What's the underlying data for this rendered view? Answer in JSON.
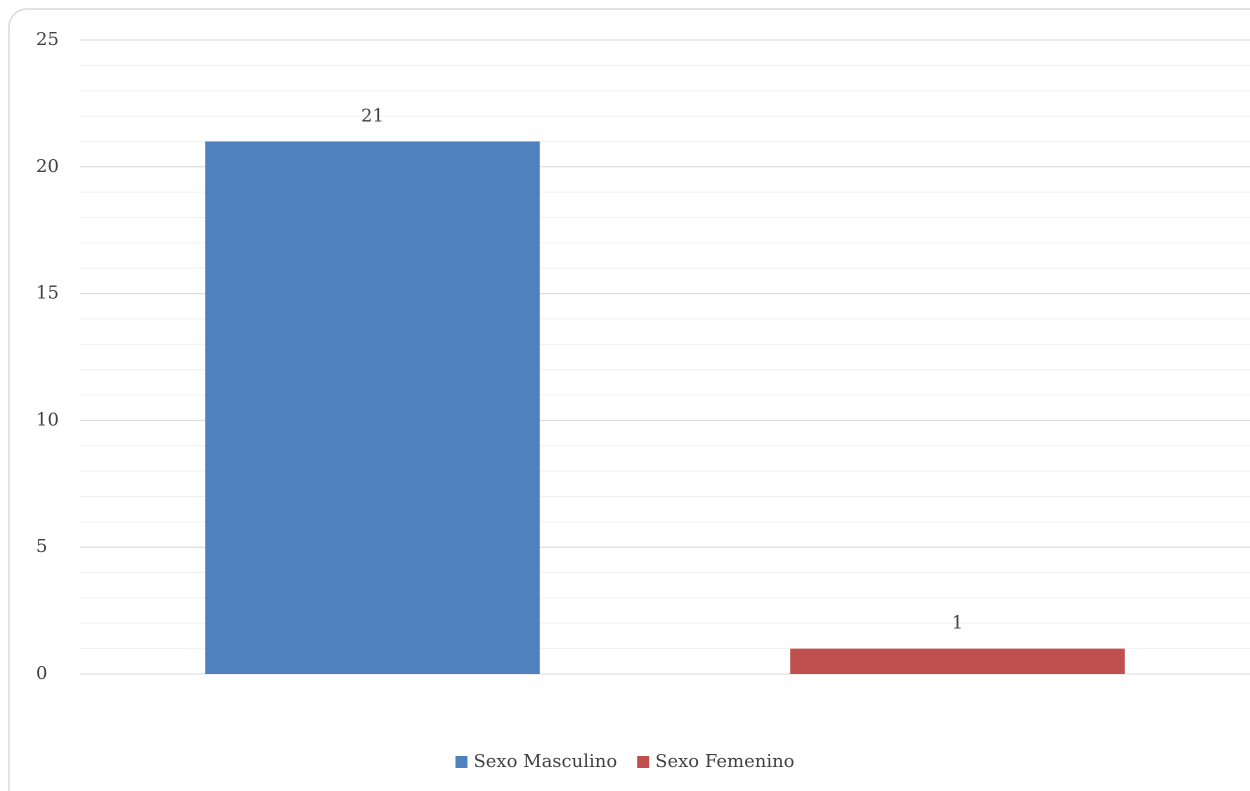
{
  "chart_data": {
    "type": "bar",
    "categories": [
      "Sexo Masculino",
      "Sexo Femenino"
    ],
    "values": [
      21,
      1
    ],
    "colors": [
      "#4f81bd",
      "#c0504d"
    ],
    "ylim": [
      0,
      25
    ],
    "yticks": [
      0,
      5,
      10,
      15,
      20,
      25
    ],
    "grid": true,
    "minor_grid_step": 1,
    "legend": "bottom"
  }
}
